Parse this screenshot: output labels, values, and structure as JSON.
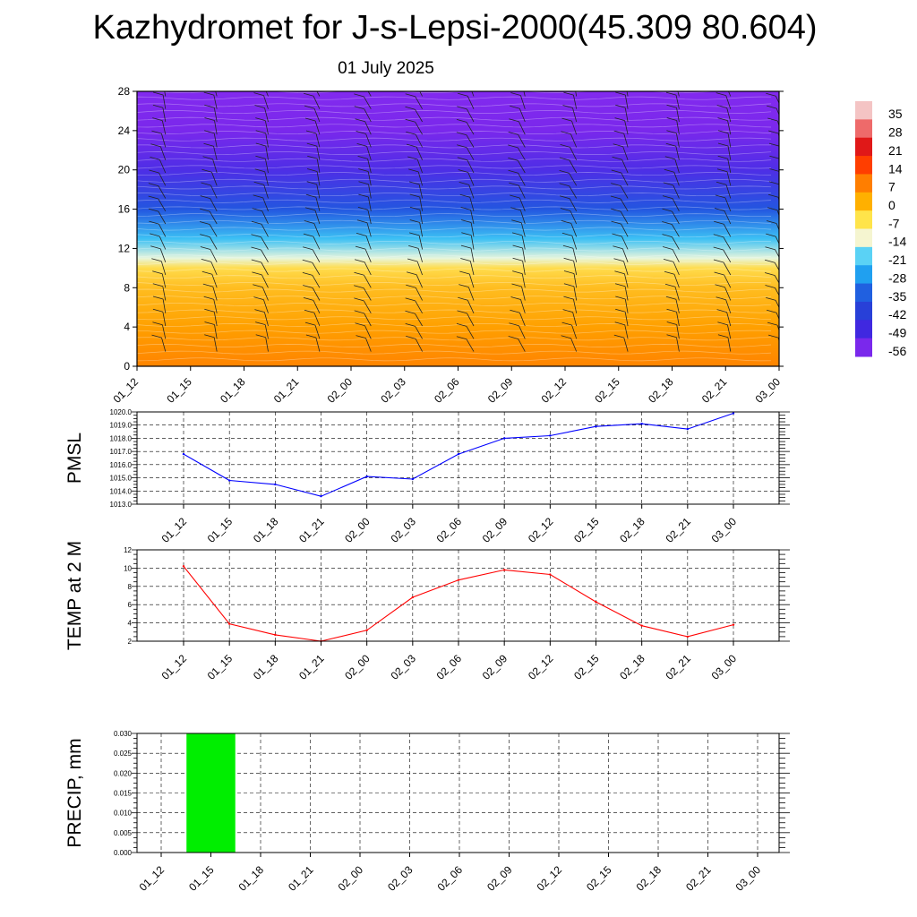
{
  "title": "Kazhydromet for J-s-Lepsi-2000(45.309 80.604)",
  "subtitle": "01 July 2025",
  "time_labels": [
    "01_12",
    "01_15",
    "01_18",
    "01_21",
    "02_00",
    "02_03",
    "02_06",
    "02_09",
    "02_12",
    "02_15",
    "02_18",
    "02_21",
    "03_00"
  ],
  "colorbar": {
    "labels": [
      "35",
      "28",
      "21",
      "14",
      "7",
      "0",
      "-7",
      "-14",
      "-21",
      "-28",
      "-35",
      "-42",
      "-49",
      "-56"
    ],
    "colors": [
      "#f4c4c4",
      "#ee6a6a",
      "#e01818",
      "#ff3e00",
      "#ff7e00",
      "#ffb000",
      "#ffe44a",
      "#f5f5d0",
      "#5ad2f5",
      "#20a0f0",
      "#2060e0",
      "#2840d8",
      "#4028e0",
      "#7a28ec"
    ]
  },
  "chart_data": [
    {
      "type": "heatmap",
      "title": "Kazhydromet for J-s-Lepsi-2000(45.309 80.604)",
      "subtitle": "01 July 2025",
      "x": [
        "01_12",
        "01_15",
        "01_18",
        "01_21",
        "02_00",
        "02_03",
        "02_06",
        "02_09",
        "02_12",
        "02_15",
        "02_18",
        "02_21",
        "03_00"
      ],
      "ylim": [
        0,
        28
      ],
      "yticks": [
        "0",
        "4",
        "8",
        "12",
        "16",
        "20",
        "24",
        "28"
      ],
      "levels_scale": [
        -56,
        35
      ],
      "profile": [
        {
          "z": 0,
          "t": 13
        },
        {
          "z": 4,
          "t": 7
        },
        {
          "z": 8,
          "t": 1
        },
        {
          "z": 10,
          "t": -5
        },
        {
          "z": 11,
          "t": -14
        },
        {
          "z": 13,
          "t": -24
        },
        {
          "z": 16,
          "t": -40
        },
        {
          "z": 20,
          "t": -50
        },
        {
          "z": 24,
          "t": -56
        },
        {
          "z": 28,
          "t": -58
        }
      ],
      "overlay": "wind barbs"
    },
    {
      "type": "line",
      "ylabel": "PMSL",
      "x": [
        "01_12",
        "01_15",
        "01_18",
        "01_21",
        "02_00",
        "02_03",
        "02_06",
        "02_09",
        "02_12",
        "02_15",
        "02_18",
        "02_21",
        "03_00"
      ],
      "ylim": [
        1013.0,
        1020.0
      ],
      "yticks": [
        "1013.0",
        "1014.0",
        "1015.0",
        "1016.0",
        "1017.0",
        "1018.0",
        "1019.0",
        "1020.0"
      ],
      "series": [
        {
          "values": [
            1016.8,
            1014.8,
            1014.5,
            1013.6,
            1015.1,
            1014.9,
            1016.8,
            1018.0,
            1018.2,
            1018.9,
            1019.1,
            1018.7,
            1019.9
          ],
          "color": "#0000ff"
        }
      ],
      "grid": true
    },
    {
      "type": "line",
      "ylabel": "TEMP at 2 M",
      "x": [
        "01_12",
        "01_15",
        "01_18",
        "01_21",
        "02_00",
        "02_03",
        "02_06",
        "02_09",
        "02_12",
        "02_15",
        "02_18",
        "02_21",
        "03_00"
      ],
      "ylim": [
        2,
        12
      ],
      "yticks": [
        "2",
        "4",
        "6",
        "8",
        "10",
        "12"
      ],
      "series": [
        {
          "values": [
            10.2,
            3.9,
            2.7,
            2.0,
            3.2,
            6.8,
            8.7,
            9.8,
            9.3,
            6.3,
            3.7,
            2.5,
            3.8
          ],
          "color": "#ff0000"
        }
      ],
      "grid": true
    },
    {
      "type": "bar",
      "ylabel": "PRECIP, mm",
      "categories": [
        "01_12",
        "01_15",
        "01_18",
        "01_21",
        "02_00",
        "02_03",
        "02_06",
        "02_09",
        "02_12",
        "02_15",
        "02_18",
        "02_21",
        "03_00"
      ],
      "values": [
        0,
        0.03,
        0,
        0,
        0,
        0,
        0,
        0,
        0,
        0,
        0,
        0,
        0
      ],
      "ylim": [
        0,
        0.03
      ],
      "yticks": [
        "0.000",
        "0.005",
        "0.010",
        "0.015",
        "0.020",
        "0.025",
        "0.030"
      ],
      "color": "#00ee00",
      "grid": true
    }
  ]
}
